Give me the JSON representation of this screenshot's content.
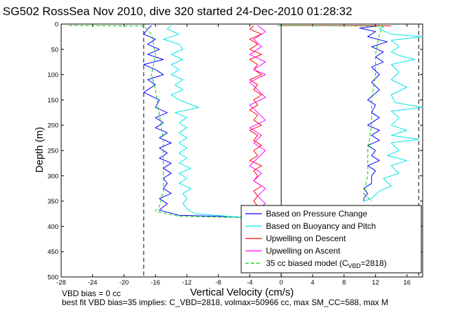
{
  "chart_data": {
    "type": "line",
    "title": "SG502 RossSea Nov 2010, dive 320 started 24-Dec-2010 01:28:32",
    "xlabel": "Vertical Velocity (cm/s)",
    "ylabel": "Depth (m)",
    "xlim": [
      -28,
      18
    ],
    "ylim": [
      500,
      0
    ],
    "y_reversed": true,
    "xticks": [
      -28,
      -24,
      -20,
      -16,
      -12,
      -8,
      -4,
      0,
      4,
      8,
      12,
      16
    ],
    "yticks": [
      0,
      50,
      100,
      150,
      200,
      250,
      300,
      350,
      400,
      450,
      500
    ],
    "grid": false,
    "legend_position": "bottom-right",
    "reference_lines": [
      {
        "x": -17.5,
        "style": "dashed",
        "color": "#000000"
      },
      {
        "x": 17.5,
        "style": "dashed",
        "color": "#000000"
      },
      {
        "x": 0,
        "style": "solid",
        "color": "#000000"
      }
    ],
    "series": [
      {
        "name": "Based on Pressure Change",
        "color": "#0000ff",
        "style": "solid",
        "points": [
          [
            -16.5,
            3
          ],
          [
            -17,
            10
          ],
          [
            -17.5,
            20
          ],
          [
            -16,
            30
          ],
          [
            -17,
            40
          ],
          [
            -15.5,
            50
          ],
          [
            -17,
            60
          ],
          [
            -15,
            70
          ],
          [
            -17.5,
            80
          ],
          [
            -16,
            90
          ],
          [
            -15,
            100
          ],
          [
            -17,
            110
          ],
          [
            -16,
            120
          ],
          [
            -17.5,
            135
          ],
          [
            -15.5,
            150
          ],
          [
            -16,
            165
          ],
          [
            -14.5,
            175
          ],
          [
            -16,
            185
          ],
          [
            -15,
            195
          ],
          [
            -16,
            205
          ],
          [
            -14.5,
            215
          ],
          [
            -15.5,
            225
          ],
          [
            -14,
            235
          ],
          [
            -15.5,
            245
          ],
          [
            -14.5,
            255
          ],
          [
            -15.5,
            265
          ],
          [
            -14,
            275
          ],
          [
            -15,
            285
          ],
          [
            -14,
            295
          ],
          [
            -15,
            305
          ],
          [
            -14.5,
            315
          ],
          [
            -15,
            325
          ],
          [
            -14,
            335
          ],
          [
            -15.5,
            345
          ],
          [
            -14.5,
            355
          ],
          [
            -15.5,
            368
          ],
          [
            -13,
            378
          ],
          [
            -6,
            381
          ],
          [
            -4,
            384
          ]
        ]
      },
      {
        "name": "Based on Buoyancy and Pitch",
        "color": "#00e5e5",
        "style": "solid",
        "points": [
          [
            -14,
            3
          ],
          [
            -14.5,
            10
          ],
          [
            -13,
            20
          ],
          [
            -15,
            30
          ],
          [
            -13,
            40
          ],
          [
            -12.5,
            50
          ],
          [
            -14,
            60
          ],
          [
            -12.5,
            70
          ],
          [
            -14,
            80
          ],
          [
            -13,
            90
          ],
          [
            -14,
            100
          ],
          [
            -12.5,
            110
          ],
          [
            -13.5,
            120
          ],
          [
            -12.5,
            130
          ],
          [
            -14,
            140
          ],
          [
            -13,
            150
          ],
          [
            -10.5,
            165
          ],
          [
            -13.5,
            175
          ],
          [
            -12,
            185
          ],
          [
            -13,
            195
          ],
          [
            -12,
            205
          ],
          [
            -13,
            215
          ],
          [
            -12,
            225
          ],
          [
            -13,
            235
          ],
          [
            -12,
            245
          ],
          [
            -13,
            255
          ],
          [
            -12,
            265
          ],
          [
            -13,
            275
          ],
          [
            -11.5,
            285
          ],
          [
            -13,
            295
          ],
          [
            -12,
            305
          ],
          [
            -13,
            315
          ],
          [
            -11.5,
            325
          ],
          [
            -12.5,
            335
          ],
          [
            -12,
            345
          ],
          [
            -12.5,
            355
          ],
          [
            -12,
            365
          ],
          [
            -11,
            375
          ],
          [
            -6,
            381
          ],
          [
            -3,
            384
          ]
        ]
      },
      {
        "name": "Upwelling on Descent",
        "color": "#ff0000",
        "style": "solid",
        "points": [
          [
            -3.5,
            3
          ],
          [
            -4,
            10
          ],
          [
            -2.5,
            20
          ],
          [
            -4,
            30
          ],
          [
            -3,
            40
          ],
          [
            -4,
            50
          ],
          [
            -2.5,
            60
          ],
          [
            -4,
            70
          ],
          [
            -3,
            80
          ],
          [
            -3.5,
            90
          ],
          [
            -2.5,
            100
          ],
          [
            -4,
            110
          ],
          [
            -3,
            120
          ],
          [
            -3.5,
            130
          ],
          [
            -2.5,
            140
          ],
          [
            -3.5,
            150
          ],
          [
            -3,
            160
          ],
          [
            -4,
            170
          ],
          [
            -3,
            180
          ],
          [
            -3.5,
            190
          ],
          [
            -2.5,
            200
          ],
          [
            -4,
            210
          ],
          [
            -3,
            220
          ],
          [
            -3.5,
            230
          ],
          [
            -2.5,
            240
          ],
          [
            -3.5,
            250
          ],
          [
            -3,
            260
          ],
          [
            -4,
            270
          ],
          [
            -2.5,
            280
          ],
          [
            -3.5,
            290
          ],
          [
            -3,
            300
          ],
          [
            -3.5,
            310
          ],
          [
            -2.5,
            320
          ],
          [
            -3.5,
            330
          ],
          [
            -3,
            340
          ],
          [
            -3.5,
            350
          ],
          [
            -3,
            360
          ],
          [
            -3,
            370
          ]
        ]
      },
      {
        "name": "Upwelling on Ascent",
        "color": "#ff00ff",
        "style": "solid",
        "points": [
          [
            -3,
            3
          ],
          [
            -2,
            15
          ],
          [
            -3.5,
            30
          ],
          [
            -2.5,
            45
          ],
          [
            -4,
            60
          ],
          [
            -2,
            75
          ],
          [
            -3.5,
            90
          ],
          [
            -2,
            100
          ],
          [
            -4,
            115
          ],
          [
            -3,
            130
          ],
          [
            -2,
            145
          ],
          [
            -4,
            160
          ],
          [
            -3,
            175
          ],
          [
            -2,
            190
          ],
          [
            -4,
            205
          ],
          [
            -2.5,
            220
          ],
          [
            -3.5,
            235
          ],
          [
            -2,
            250
          ],
          [
            -3,
            265
          ],
          [
            -4,
            280
          ],
          [
            -2.5,
            295
          ],
          [
            -3.5,
            310
          ],
          [
            -2,
            325
          ],
          [
            -3,
            340
          ],
          [
            -2,
            355
          ],
          [
            -3,
            365
          ]
        ]
      },
      {
        "name": "35 cc biased model (C_VBD=2818)",
        "color": "#00cc00",
        "style": "dashed",
        "points": [
          [
            -27,
            3
          ],
          [
            -17.5,
            4
          ],
          [
            -16.5,
            20
          ],
          [
            -16,
            60
          ],
          [
            -16.5,
            100
          ],
          [
            -16,
            130
          ],
          [
            -15.5,
            180
          ],
          [
            -15,
            230
          ],
          [
            -15,
            280
          ],
          [
            -15,
            330
          ],
          [
            -15.5,
            360
          ],
          [
            -16,
            370
          ],
          [
            -13,
            380
          ],
          [
            -4,
            383
          ]
        ]
      },
      {
        "name": "",
        "color": "#0000ff",
        "style": "solid",
        "points": [
          [
            12.5,
            3
          ],
          [
            10,
            8
          ],
          [
            12,
            15
          ],
          [
            11,
            25
          ],
          [
            13.5,
            35
          ],
          [
            11.5,
            45
          ],
          [
            13,
            55
          ],
          [
            12,
            65
          ],
          [
            13,
            75
          ],
          [
            11.5,
            85
          ],
          [
            12.5,
            100
          ],
          [
            11.5,
            115
          ],
          [
            12.5,
            130
          ],
          [
            11,
            150
          ],
          [
            12,
            160
          ],
          [
            11.5,
            175
          ],
          [
            12.5,
            185
          ],
          [
            11,
            200
          ],
          [
            12.5,
            210
          ],
          [
            11.5,
            220
          ],
          [
            12.5,
            230
          ],
          [
            11,
            240
          ],
          [
            12,
            250
          ],
          [
            11.5,
            260
          ],
          [
            12.5,
            270
          ],
          [
            11,
            280
          ],
          [
            12,
            290
          ],
          [
            11.5,
            300
          ],
          [
            11.5,
            315
          ],
          [
            10.5,
            325
          ],
          [
            11,
            335
          ],
          [
            10.5,
            345
          ],
          [
            10.5,
            350
          ]
        ]
      },
      {
        "name": "",
        "color": "#00e5e5",
        "style": "solid",
        "points": [
          [
            13,
            3
          ],
          [
            12.5,
            10
          ],
          [
            14,
            20
          ],
          [
            18,
            25
          ],
          [
            14,
            32
          ],
          [
            15,
            45
          ],
          [
            14,
            55
          ],
          [
            15,
            62
          ],
          [
            17,
            70
          ],
          [
            14,
            80
          ],
          [
            15,
            95
          ],
          [
            14,
            110
          ],
          [
            16,
            125
          ],
          [
            14,
            140
          ],
          [
            14.5,
            155
          ],
          [
            18,
            165
          ],
          [
            14,
            172
          ],
          [
            15,
            185
          ],
          [
            14,
            200
          ],
          [
            16,
            210
          ],
          [
            14,
            220
          ],
          [
            17.5,
            228
          ],
          [
            14,
            235
          ],
          [
            15,
            250
          ],
          [
            13.5,
            260
          ],
          [
            16,
            270
          ],
          [
            14,
            280
          ],
          [
            15,
            295
          ],
          [
            13,
            305
          ],
          [
            14,
            320
          ],
          [
            12.5,
            330
          ],
          [
            11.5,
            345
          ],
          [
            10.5,
            350
          ]
        ]
      },
      {
        "name": "",
        "color": "#ff0000",
        "style": "solid",
        "points": [
          [
            0,
            3
          ],
          [
            4,
            3
          ],
          [
            12,
            3
          ],
          [
            14,
            4
          ]
        ]
      },
      {
        "name": "",
        "color": "#00cc00",
        "style": "dashed",
        "points": [
          [
            -0.5,
            3
          ],
          [
            13,
            4
          ],
          [
            12.5,
            20
          ],
          [
            12,
            60
          ],
          [
            12,
            100
          ],
          [
            11.5,
            150
          ],
          [
            11.5,
            200
          ],
          [
            11,
            250
          ],
          [
            11,
            300
          ],
          [
            10.5,
            335
          ],
          [
            11.5,
            350
          ]
        ]
      }
    ],
    "annotations": [
      "VBD bias = 0 cc",
      "best fit VBD bias=35 implies: C_VBD=2818, volmax=50966 cc, max SM_CC=588, max M"
    ]
  }
}
